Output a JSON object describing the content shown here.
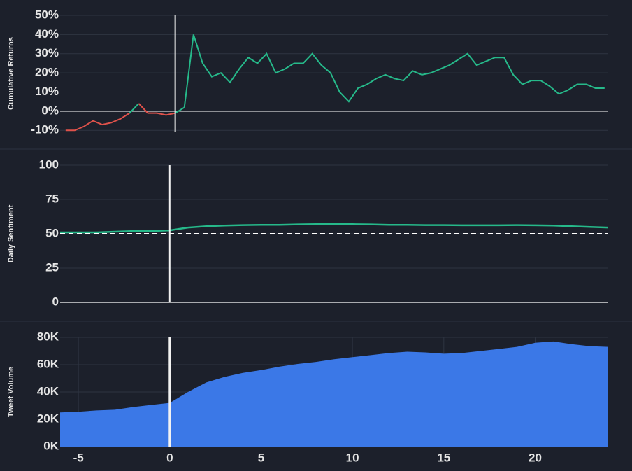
{
  "chart_data": [
    {
      "type": "line",
      "ylabel": "Cumulative Returns",
      "sign_colors": {
        "positive": "#26b98a",
        "negative": "#e0524b"
      },
      "x": [
        -6,
        -5.5,
        -5,
        -4.5,
        -4,
        -3.5,
        -3,
        -2.5,
        -2,
        -1.5,
        -1,
        -0.5,
        0,
        0.5,
        1,
        1.5,
        2,
        2.5,
        3,
        3.5,
        4,
        4.5,
        5,
        5.5,
        6,
        6.5,
        7,
        7.5,
        8,
        8.5,
        9,
        9.5,
        10,
        10.5,
        11,
        11.5,
        12,
        12.5,
        13,
        13.5,
        14,
        14.5,
        15,
        15.5,
        16,
        16.5,
        17,
        17.5,
        18,
        18.5,
        19,
        19.5,
        20,
        20.5,
        21,
        21.5,
        22,
        22.5,
        23,
        23.5
      ],
      "values": [
        -10,
        -10,
        -8,
        -5,
        -7,
        -6,
        -4,
        -1,
        4,
        -1,
        -1,
        -2,
        -1,
        2,
        40,
        25,
        18,
        20,
        15,
        22,
        28,
        25,
        30,
        20,
        22,
        25,
        25,
        30,
        24,
        20,
        10,
        5,
        12,
        14,
        17,
        19,
        17,
        16,
        21,
        19,
        20,
        22,
        24,
        27,
        30,
        24,
        26,
        28,
        28,
        19,
        14,
        16,
        16,
        13,
        9,
        11,
        14,
        14,
        12,
        12
      ],
      "xlim": [
        -6.3,
        23.7
      ],
      "ylim": [
        -11,
        50
      ],
      "yticks": [
        {
          "value": -10,
          "label": "-10%"
        },
        {
          "value": 0,
          "label": "0%"
        },
        {
          "value": 10,
          "label": "10%"
        },
        {
          "value": 20,
          "label": "20%"
        },
        {
          "value": 30,
          "label": "30%"
        },
        {
          "value": 40,
          "label": "40%"
        },
        {
          "value": 50,
          "label": "50%"
        }
      ],
      "vline": 0,
      "grid": true
    },
    {
      "type": "line",
      "ylabel": "Daily Sentiment",
      "color": "#26b98a",
      "x": [
        -6,
        -5,
        -4,
        -3,
        -2,
        -1,
        0,
        1,
        2,
        3,
        4,
        5,
        6,
        7,
        8,
        9,
        10,
        11,
        12,
        13,
        14,
        15,
        16,
        17,
        18,
        19,
        20,
        21,
        22,
        23,
        24
      ],
      "values": [
        51,
        51,
        51,
        51.5,
        52,
        52,
        52.5,
        54.5,
        55.5,
        56,
        56.3,
        56.5,
        56.5,
        56.8,
        57,
        57,
        57,
        56.8,
        56.5,
        56.5,
        56.3,
        56.3,
        56.2,
        56.2,
        56.2,
        56.3,
        56.2,
        56,
        55.5,
        55,
        54.5
      ],
      "xlim": [
        -6,
        24
      ],
      "ylim": [
        0,
        100
      ],
      "yticks": [
        0,
        25,
        50,
        75,
        100
      ],
      "vline": 0,
      "hline": 50,
      "grid": true
    },
    {
      "type": "area",
      "ylabel": "Tweet Volume",
      "color": "#3b78e7",
      "x": [
        -6,
        -5,
        -4,
        -3,
        -2,
        -1,
        0,
        1,
        2,
        3,
        4,
        5,
        6,
        7,
        8,
        9,
        10,
        11,
        12,
        13,
        14,
        15,
        16,
        17,
        18,
        19,
        20,
        21,
        22,
        23,
        24
      ],
      "values": [
        25000,
        25500,
        26500,
        27000,
        29000,
        30500,
        32000,
        40000,
        47000,
        51000,
        54000,
        56000,
        58500,
        60500,
        62000,
        64000,
        65500,
        67000,
        68500,
        69500,
        69000,
        68000,
        68500,
        70000,
        71500,
        73000,
        76000,
        77000,
        75000,
        73500,
        73000
      ],
      "xlim": [
        -6,
        24
      ],
      "ylim": [
        0,
        80000
      ],
      "yticks": [
        {
          "value": 0,
          "label": "0K"
        },
        {
          "value": 20000,
          "label": "20K"
        },
        {
          "value": 40000,
          "label": "40K"
        },
        {
          "value": 60000,
          "label": "60K"
        },
        {
          "value": 80000,
          "label": "80K"
        }
      ],
      "xticks": [
        -5,
        0,
        5,
        10,
        15,
        20
      ],
      "vline": 0,
      "grid": true
    }
  ]
}
